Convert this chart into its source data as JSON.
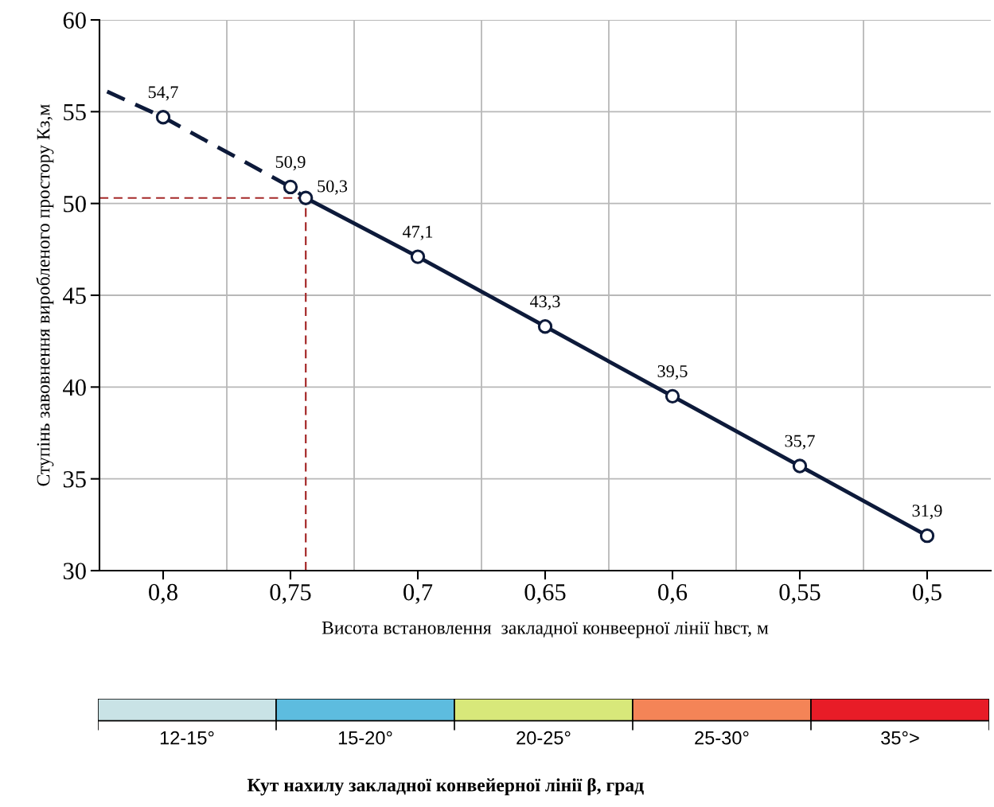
{
  "chart_data": [
    {
      "type": "line",
      "xlabel": "Висота встановлення  закладної конвеерної лінії hвст, м",
      "ylabel": "Ступінь завовнення виробленого простору Кз,м",
      "xlim": [
        0.825,
        0.475
      ],
      "xticks": [
        {
          "value": 0.8,
          "label": "0,8"
        },
        {
          "value": 0.775,
          "label": null
        },
        {
          "value": 0.75,
          "label": "0,75"
        },
        {
          "value": 0.725,
          "label": null
        },
        {
          "value": 0.7,
          "label": "0,7"
        },
        {
          "value": 0.675,
          "label": null
        },
        {
          "value": 0.65,
          "label": "0,65"
        },
        {
          "value": 0.625,
          "label": null
        },
        {
          "value": 0.6,
          "label": "0,6"
        },
        {
          "value": 0.575,
          "label": null
        },
        {
          "value": 0.55,
          "label": "0,55"
        },
        {
          "value": 0.525,
          "label": null
        },
        {
          "value": 0.5,
          "label": "0,5"
        }
      ],
      "ylim": [
        30,
        60
      ],
      "yticks": [
        30,
        35,
        40,
        45,
        50,
        55,
        60
      ],
      "grid": true,
      "series": [
        {
          "type": "line",
          "color": "#0d1a3a",
          "line_style": "dashed",
          "x": [
            0.822,
            0.8,
            0.75,
            0.744
          ],
          "values": [
            56.1,
            54.7,
            50.9,
            50.3
          ]
        },
        {
          "type": "scatter",
          "color": "#0d1a3a",
          "marker": "circle",
          "x": [
            0.8,
            0.75
          ],
          "values": [
            54.7,
            50.9
          ],
          "value_labels": [
            "54,7",
            "50,9"
          ]
        },
        {
          "type": "line",
          "color": "#0d1a3a",
          "line_style": "solid",
          "marker": "circle",
          "x": [
            0.744,
            0.7,
            0.65,
            0.6,
            0.55,
            0.5
          ],
          "values": [
            50.3,
            47.1,
            43.3,
            39.5,
            35.7,
            31.9
          ],
          "value_labels": [
            "50,3",
            "47,1",
            "43,3",
            "39,5",
            "35,7",
            "31,9"
          ]
        }
      ],
      "ref_lines": [
        {
          "axis": "y",
          "value": 50.3,
          "color": "#a52a2a",
          "line_style": "dashed"
        },
        {
          "axis": "x",
          "value": 0.744,
          "color": "#a52a2a",
          "line_style": "dashed"
        }
      ]
    },
    {
      "type": "other",
      "xlabel": "Кут нахилу закладної конвейерної лінії β, град",
      "categories": [
        "12-15°",
        "15-20°",
        "20-25°",
        "25-30°",
        "35°>"
      ],
      "colors": [
        "#c9e3e6",
        "#5dbcdf",
        "#d8e87a",
        "#f48457",
        "#e81c27"
      ]
    }
  ]
}
